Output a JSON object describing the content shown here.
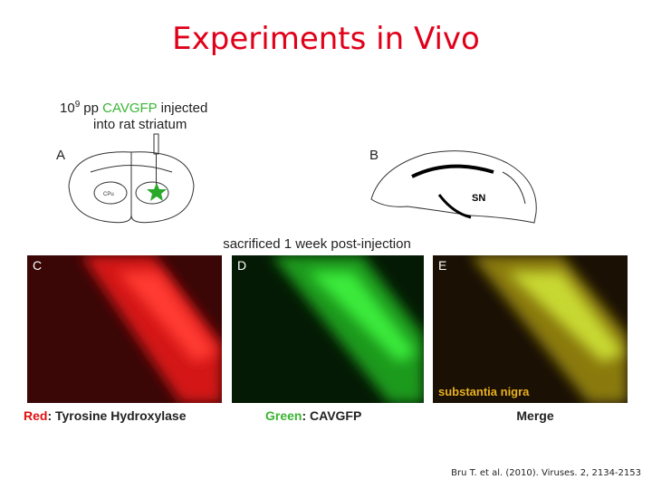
{
  "slide": {
    "title": "Experiments in Vivo",
    "figure": {
      "injection": {
        "base": "10",
        "exponent": "9",
        "unit": "pp",
        "vector": "CAVGFP",
        "verb": "injected",
        "line2": "into rat striatum"
      },
      "panel_a": {
        "label": "A",
        "region": "CPu"
      },
      "panel_b": {
        "label": "B",
        "region": "SN"
      },
      "sacrificed": "sacrificed 1 week post-injection",
      "panel_c": {
        "label": "C",
        "caption_color": "Red",
        "caption_rest": ": Tyrosine Hydroxylase"
      },
      "panel_d": {
        "label": "D",
        "caption_color": "Green",
        "caption_rest": ": CAVGFP"
      },
      "panel_e": {
        "label": "E",
        "overlay": "substantia nigra",
        "caption": "Merge"
      }
    },
    "citation": "Bru  T. et al. (2010). Viruses. 2, 2134-2153"
  }
}
